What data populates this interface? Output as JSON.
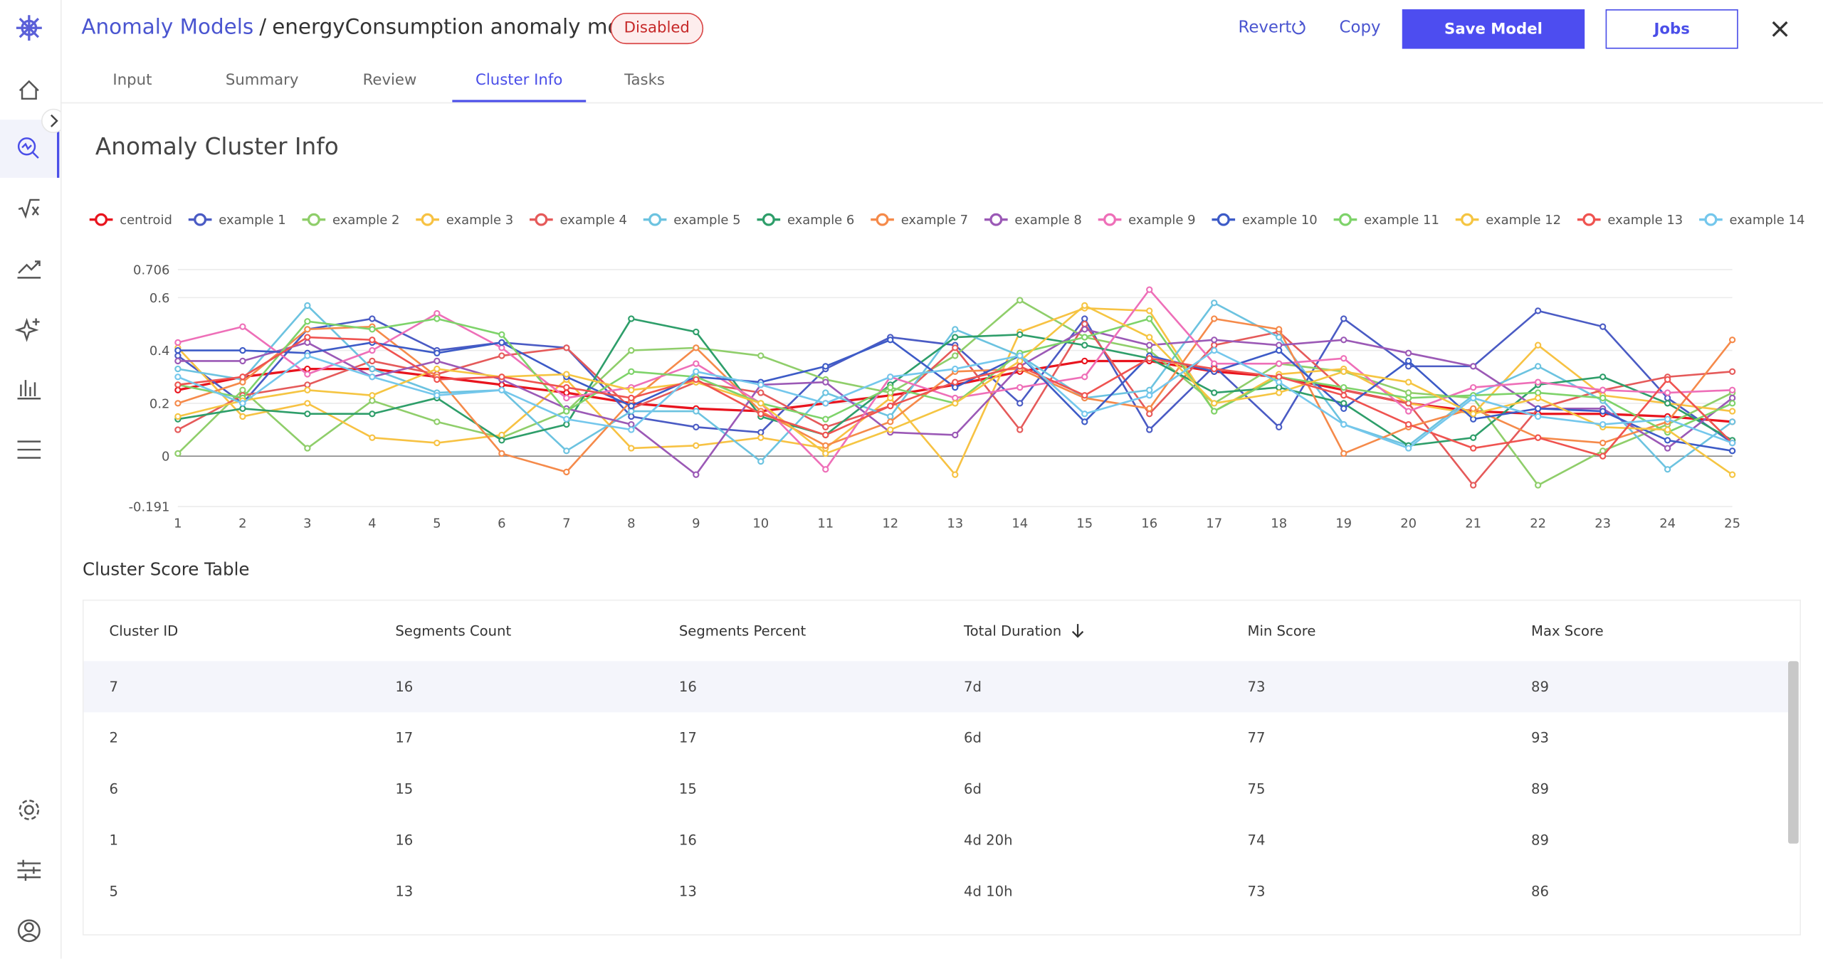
{
  "header": {
    "breadcrumb": "Anomaly Models",
    "separator": "/",
    "title": "energyConsumption anomaly model",
    "status": "Disabled",
    "actions": {
      "revert": "Revert",
      "copy": "Copy",
      "save": "Save Model",
      "jobs": "Jobs"
    }
  },
  "tabs": {
    "items": [
      "Input",
      "Summary",
      "Review",
      "Cluster Info",
      "Tasks"
    ],
    "active": 3
  },
  "section_title": "Anomaly Cluster Info",
  "chart_data": {
    "type": "line",
    "legend_page": "1/2",
    "x": [
      1,
      2,
      3,
      4,
      5,
      6,
      7,
      8,
      9,
      10,
      11,
      12,
      13,
      14,
      15,
      16,
      17,
      18,
      19,
      20,
      21,
      22,
      23,
      24,
      25
    ],
    "xlim": [
      1,
      25
    ],
    "xticks": [
      1,
      2,
      3,
      4,
      5,
      6,
      7,
      8,
      9,
      10,
      11,
      12,
      13,
      14,
      15,
      16,
      17,
      18,
      19,
      20,
      21,
      22,
      23,
      24,
      25
    ],
    "ylim": [
      -0.191,
      0.706
    ],
    "yticks": [
      -0.191,
      0,
      0.2,
      0.4,
      0.6,
      0.706
    ],
    "grid": true,
    "series": [
      {
        "name": "centroid",
        "color": "#e8141e",
        "values": [
          0.25,
          0.3,
          0.33,
          0.33,
          0.3,
          0.27,
          0.24,
          0.2,
          0.18,
          0.17,
          0.2,
          0.23,
          0.27,
          0.32,
          0.36,
          0.36,
          0.32,
          0.3,
          0.25,
          0.2,
          0.17,
          0.16,
          0.16,
          0.15,
          0.13
        ]
      },
      {
        "name": "example 1",
        "color": "#4a5bc4",
        "values": [
          0.38,
          0.2,
          0.48,
          0.52,
          0.4,
          0.43,
          0.41,
          0.15,
          0.11,
          0.09,
          0.33,
          0.45,
          0.42,
          0.2,
          0.52,
          0.1,
          0.34,
          0.11,
          0.52,
          0.34,
          0.34,
          0.55,
          0.49,
          0.22,
          0.05
        ]
      },
      {
        "name": "example 2",
        "color": "#8fce6a",
        "values": [
          0.01,
          0.25,
          0.03,
          0.21,
          0.13,
          0.07,
          0.17,
          0.4,
          0.41,
          0.38,
          0.29,
          0.24,
          0.38,
          0.59,
          0.45,
          0.4,
          0.2,
          0.35,
          0.32,
          0.24,
          0.22,
          -0.11,
          0.02,
          0.12,
          0.24
        ]
      },
      {
        "name": "example 3",
        "color": "#f7c243",
        "values": [
          0.41,
          0.15,
          0.2,
          0.07,
          0.05,
          0.08,
          0.29,
          0.03,
          0.04,
          0.07,
          0.03,
          0.22,
          -0.07,
          0.47,
          0.56,
          0.55,
          0.17,
          0.31,
          0.33,
          0.2,
          0.16,
          0.42,
          0.23,
          0.2,
          0.17
        ]
      },
      {
        "name": "example 4",
        "color": "#e55a5a",
        "values": [
          0.1,
          0.23,
          0.27,
          0.36,
          0.31,
          0.38,
          0.41,
          0.18,
          0.28,
          0.24,
          0.11,
          0.19,
          0.41,
          0.1,
          0.5,
          0.16,
          0.42,
          0.47,
          0.25,
          0.2,
          -0.11,
          0.18,
          0.25,
          0.3,
          0.32
        ]
      },
      {
        "name": "example 5",
        "color": "#6cc3e0",
        "values": [
          0.33,
          0.29,
          0.57,
          0.33,
          0.24,
          0.25,
          0.02,
          0.17,
          0.17,
          -0.02,
          0.24,
          0.15,
          0.48,
          0.38,
          0.22,
          0.25,
          0.58,
          0.45,
          0.12,
          0.04,
          0.23,
          0.34,
          0.21,
          -0.05,
          0.13
        ]
      },
      {
        "name": "example 6",
        "color": "#2e9e6a",
        "values": [
          0.14,
          0.18,
          0.16,
          0.16,
          0.22,
          0.06,
          0.12,
          0.52,
          0.47,
          0.15,
          0.08,
          0.27,
          0.45,
          0.46,
          0.42,
          0.37,
          0.24,
          0.26,
          0.2,
          0.04,
          0.07,
          0.27,
          0.3,
          0.2,
          0.06
        ]
      },
      {
        "name": "example 7",
        "color": "#f58a4a",
        "values": [
          0.2,
          0.28,
          0.48,
          0.49,
          0.3,
          0.01,
          -0.06,
          0.21,
          0.41,
          0.17,
          0.04,
          0.13,
          0.32,
          0.33,
          0.22,
          0.18,
          0.52,
          0.48,
          0.01,
          0.11,
          0.18,
          0.07,
          0.05,
          0.13,
          0.44
        ]
      },
      {
        "name": "example 8",
        "color": "#9b59b6",
        "values": [
          0.36,
          0.36,
          0.43,
          0.3,
          0.36,
          0.29,
          0.18,
          0.12,
          -0.07,
          0.27,
          0.28,
          0.09,
          0.08,
          0.34,
          0.48,
          0.42,
          0.44,
          0.42,
          0.44,
          0.39,
          0.34,
          0.18,
          0.18,
          0.03,
          0.22
        ]
      },
      {
        "name": "example 9",
        "color": "#ee6fb8",
        "values": [
          0.43,
          0.49,
          0.31,
          0.4,
          0.54,
          0.41,
          0.22,
          0.26,
          0.35,
          0.2,
          -0.05,
          0.3,
          0.22,
          0.26,
          0.3,
          0.63,
          0.35,
          0.35,
          0.37,
          0.17,
          0.26,
          0.28,
          0.25,
          0.24,
          0.25
        ]
      },
      {
        "name": "example 10",
        "color": "#3d5bc7",
        "values": [
          0.4,
          0.4,
          0.39,
          0.43,
          0.39,
          0.43,
          0.3,
          0.19,
          0.3,
          0.28,
          0.34,
          0.44,
          0.26,
          0.38,
          0.13,
          0.38,
          0.32,
          0.4,
          0.18,
          0.36,
          0.14,
          0.18,
          0.17,
          0.06,
          0.02
        ]
      },
      {
        "name": "example 11",
        "color": "#7ed36a",
        "values": [
          0.27,
          0.22,
          0.51,
          0.48,
          0.52,
          0.46,
          0.17,
          0.32,
          0.3,
          0.2,
          0.14,
          0.26,
          0.2,
          0.39,
          0.45,
          0.52,
          0.17,
          0.3,
          0.26,
          0.22,
          0.23,
          0.24,
          0.22,
          0.09,
          0.2
        ]
      },
      {
        "name": "example 12",
        "color": "#f5c542",
        "values": [
          0.15,
          0.21,
          0.25,
          0.23,
          0.33,
          0.3,
          0.31,
          0.25,
          0.28,
          0.2,
          0.01,
          0.1,
          0.2,
          0.36,
          0.57,
          0.45,
          0.2,
          0.24,
          0.32,
          0.28,
          0.16,
          0.22,
          0.11,
          0.1,
          -0.07
        ]
      },
      {
        "name": "example 13",
        "color": "#ef5350",
        "values": [
          0.27,
          0.3,
          0.45,
          0.44,
          0.29,
          0.3,
          0.26,
          0.22,
          0.29,
          0.16,
          0.08,
          0.19,
          0.28,
          0.34,
          0.23,
          0.37,
          0.33,
          0.3,
          0.23,
          0.12,
          0.03,
          0.07,
          0,
          0.29,
          0.05
        ]
      },
      {
        "name": "example 14",
        "color": "#74c7ec",
        "values": [
          0.3,
          0.2,
          0.38,
          0.3,
          0.23,
          0.25,
          0.14,
          0.1,
          0.32,
          0.27,
          0.2,
          0.3,
          0.33,
          0.38,
          0.16,
          0.23,
          0.4,
          0.28,
          0.12,
          0.03,
          0.22,
          0.15,
          0.12,
          0.14,
          0.05
        ]
      }
    ]
  },
  "table": {
    "title": "Cluster Score Table",
    "columns": [
      "Cluster ID",
      "Segments Count",
      "Segments Percent",
      "Total Duration",
      "Min Score",
      "Max Score"
    ],
    "sorted_column": 3,
    "rows": [
      [
        7,
        16,
        16,
        "7d",
        73,
        89
      ],
      [
        2,
        17,
        17,
        "6d",
        77,
        93
      ],
      [
        6,
        15,
        15,
        "6d",
        75,
        89
      ],
      [
        1,
        16,
        16,
        "4d 20h",
        74,
        89
      ],
      [
        5,
        13,
        13,
        "4d 10h",
        73,
        86
      ]
    ]
  }
}
